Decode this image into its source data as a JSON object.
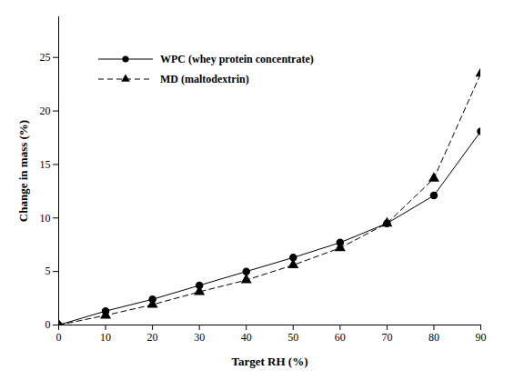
{
  "chart_data": {
    "type": "line",
    "x_label": "Target RH (%)",
    "y_label": "Change in mass (%)",
    "x": [
      0,
      10,
      20,
      30,
      40,
      50,
      60,
      70,
      80,
      90
    ],
    "series": [
      {
        "name": "WPC (whey protein concentrate)",
        "color": "#000000",
        "marker": "circle",
        "line_style": "solid",
        "values": [
          0,
          1.3,
          2.4,
          3.7,
          5.0,
          6.3,
          7.7,
          9.5,
          12.1,
          18.1
        ]
      },
      {
        "name": "MD (maltodextrin)",
        "color": "#000000",
        "marker": "triangle",
        "line_style": "dashed",
        "values": [
          0,
          0.9,
          1.9,
          3.1,
          4.2,
          5.6,
          7.2,
          9.5,
          13.7,
          23.5
        ]
      }
    ],
    "xlim": [
      0,
      90
    ],
    "xticks": [
      0,
      10,
      20,
      30,
      40,
      50,
      60,
      70,
      80,
      90
    ],
    "ylim": [
      0,
      28.8
    ],
    "yticks": [
      0,
      5,
      10,
      15,
      20,
      25
    ],
    "grid": false,
    "legend": "upper left"
  }
}
